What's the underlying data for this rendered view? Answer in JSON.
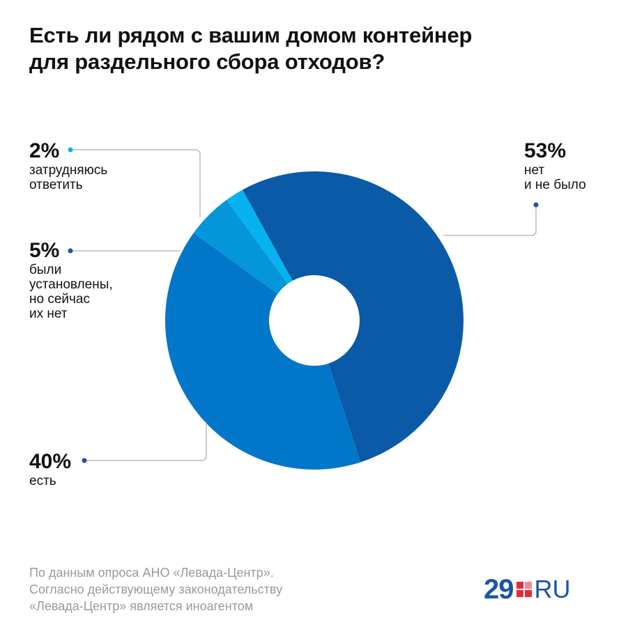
{
  "title_lines": [
    "Есть ли рядом с вашим домом контейнер",
    "для раздельного сбора отходов?"
  ],
  "chart_data": {
    "type": "pie",
    "donut": true,
    "title": "Есть ли рядом с вашим домом контейнер для раздельного сбора отходов?",
    "slices": [
      {
        "label": "нет\nи не было",
        "value": 53,
        "display": "53%",
        "color": "#0a5aa8"
      },
      {
        "label": "есть",
        "value": 40,
        "display": "40%",
        "color": "#0277c9"
      },
      {
        "label": "были\nустановлены,\nно сейчас\nих нет",
        "value": 5,
        "display": "5%",
        "color": "#0596da"
      },
      {
        "label": "затрудняюсь\nответить",
        "value": 2,
        "display": "2%",
        "color": "#06b3f0"
      }
    ],
    "legend": "none"
  },
  "footer_lines": [
    "По данным опроса АНО «Левада-Центр».",
    "Согласно действующему законодательству",
    "«Левада-Центр» является иноагентом"
  ],
  "logo": {
    "number": "29",
    "suffix": "RU",
    "colors": {
      "blue": "#1a56a6",
      "red": "#e52b38"
    }
  },
  "colors": {
    "leader_line": "#999999",
    "dot": "#1a56a6",
    "dot_light": "#06b3f0"
  }
}
